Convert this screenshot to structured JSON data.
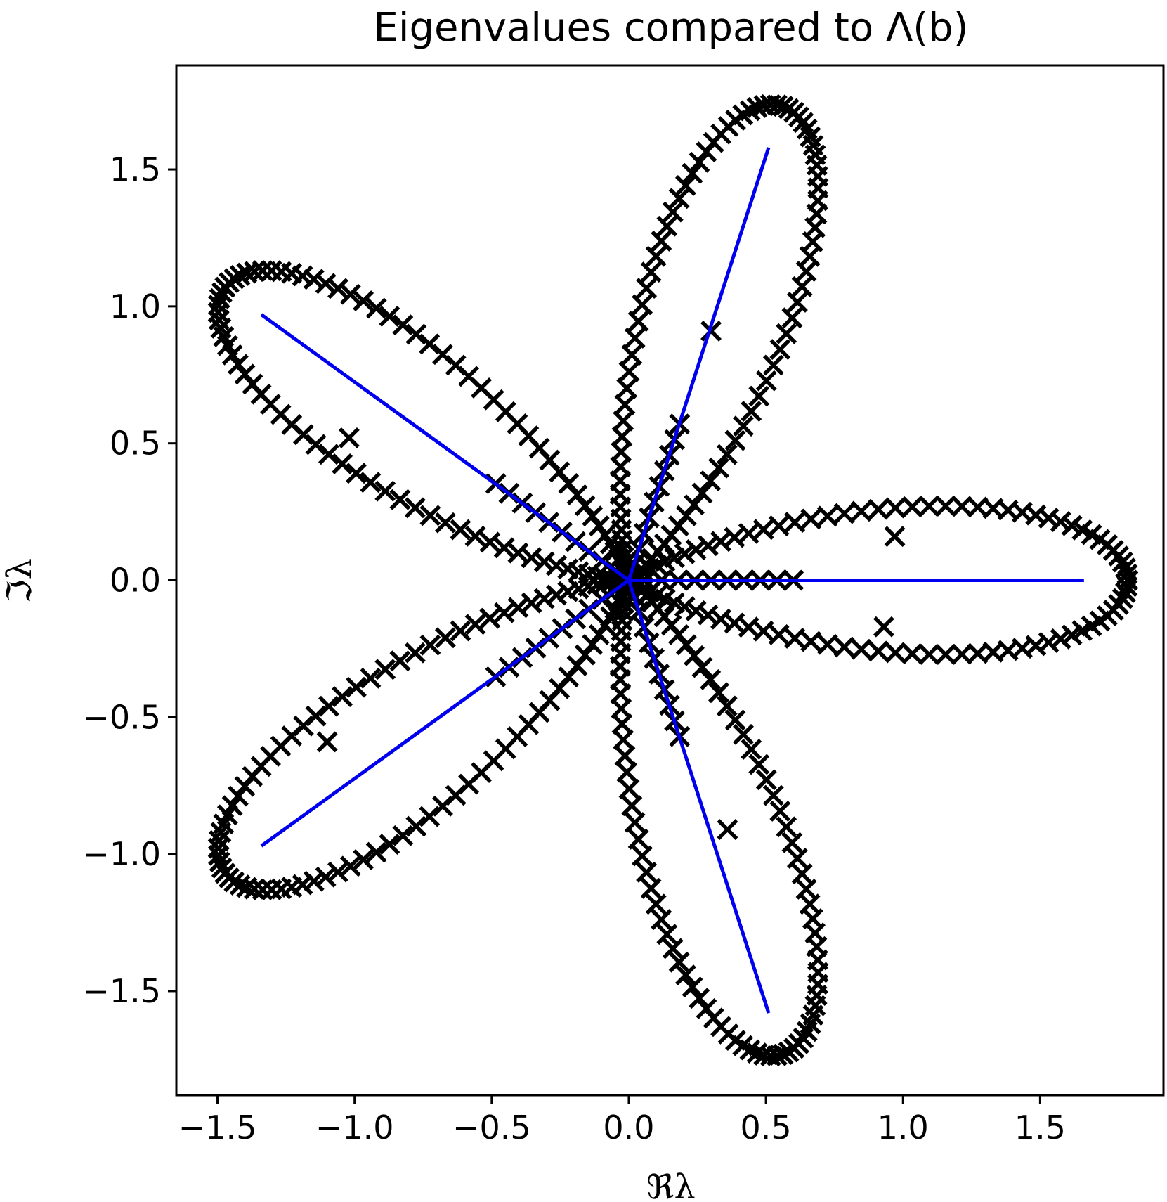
{
  "chart_data": {
    "type": "scatter",
    "title": "Eigenvalues compared to Λ(b)",
    "xlabel": "ℜλ",
    "ylabel": "ℑλ",
    "xlim": [
      -1.65,
      1.95
    ],
    "ylim": [
      -1.88,
      1.88
    ],
    "xticks": [
      -1.5,
      -1.0,
      -0.5,
      0.0,
      0.5,
      1.0,
      1.5
    ],
    "yticks": [
      -1.5,
      -1.0,
      -0.5,
      0.0,
      0.5,
      1.0,
      1.5
    ],
    "xtick_labels": [
      "−1.5",
      "−1.0",
      "−0.5",
      "0.0",
      "0.5",
      "1.0",
      "1.5"
    ],
    "ytick_labels": [
      "−1.5",
      "−1.0",
      "−0.5",
      "0.0",
      "0.5",
      "1.0",
      "1.5"
    ],
    "grid": false,
    "series": [
      {
        "kind": "eigenvalue-markers",
        "marker": "x",
        "color": "#000000",
        "petals": 5,
        "petal_tip_radius": 1.82,
        "petal_width": 0.33,
        "loop_samples_per_petal": 46,
        "isolated_points": [
          {
            "x": 0.3,
            "y": 0.91
          },
          {
            "x": -1.02,
            "y": 0.52
          },
          {
            "x": -1.1,
            "y": -0.59
          },
          {
            "x": 0.36,
            "y": -0.91
          },
          {
            "x": 0.97,
            "y": 0.16
          },
          {
            "x": 0.93,
            "y": -0.17
          }
        ]
      },
      {
        "kind": "rays",
        "color": "#0000ee",
        "segments": [
          {
            "from": [
              0,
              0
            ],
            "to": [
              1.66,
              0.0
            ]
          },
          {
            "from": [
              0,
              0
            ],
            "to": [
              0.51,
              1.58
            ]
          },
          {
            "from": [
              0,
              0
            ],
            "to": [
              -1.34,
              0.97
            ]
          },
          {
            "from": [
              0,
              0
            ],
            "to": [
              -1.34,
              -0.97
            ]
          },
          {
            "from": [
              0,
              0
            ],
            "to": [
              0.51,
              -1.58
            ]
          }
        ]
      }
    ]
  }
}
